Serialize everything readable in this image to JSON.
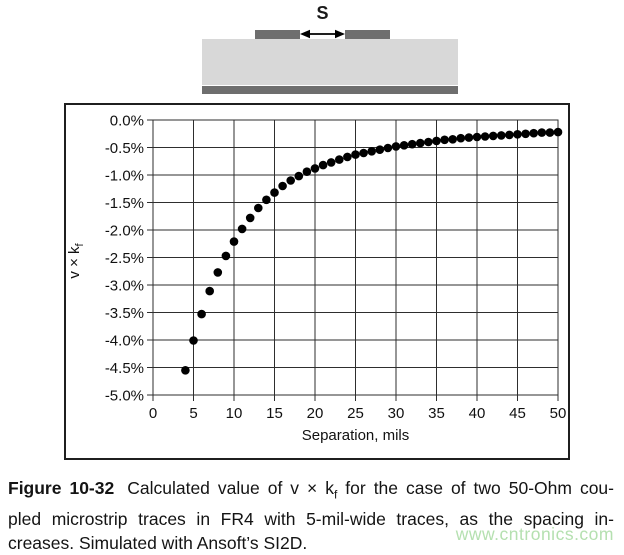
{
  "diagram": {
    "spacing_label": "S"
  },
  "chart_data": {
    "type": "scatter",
    "title": "",
    "xlabel": "Separation, mils",
    "ylabel": "v × k_f",
    "ylabel_main": "v × k",
    "ylabel_sub": "f",
    "xlim": [
      0,
      50
    ],
    "ylim": [
      -5.0,
      0.0
    ],
    "grid": true,
    "legend": "none",
    "x_tick_labels": [
      "0",
      "5",
      "10",
      "15",
      "20",
      "25",
      "30",
      "35",
      "40",
      "45",
      "50"
    ],
    "y_tick_labels": [
      "0.0%",
      "-0.5%",
      "-1.0%",
      "-1.5%",
      "-2.0%",
      "-2.5%",
      "-3.0%",
      "-3.5%",
      "-4.0%",
      "-4.5%",
      "-5.0%"
    ],
    "marker": "filled-circle",
    "marker_color": "#000000",
    "series": [
      {
        "name": "v × k_f",
        "x": [
          4,
          5,
          6,
          7,
          8,
          9,
          10,
          11,
          12,
          13,
          14,
          15,
          16,
          17,
          18,
          19,
          20,
          21,
          22,
          23,
          24,
          25,
          26,
          27,
          28,
          29,
          30,
          31,
          32,
          33,
          34,
          35,
          36,
          37,
          38,
          39,
          40,
          41,
          42,
          43,
          44,
          45,
          46,
          47,
          48,
          49,
          50
        ],
        "y_percent": [
          -4.55,
          -4.01,
          -3.53,
          -3.11,
          -2.77,
          -2.47,
          -2.21,
          -1.98,
          -1.78,
          -1.6,
          -1.45,
          -1.32,
          -1.2,
          -1.1,
          -1.02,
          -0.94,
          -0.88,
          -0.82,
          -0.77,
          -0.72,
          -0.67,
          -0.63,
          -0.6,
          -0.57,
          -0.54,
          -0.51,
          -0.48,
          -0.46,
          -0.44,
          -0.42,
          -0.4,
          -0.38,
          -0.36,
          -0.35,
          -0.33,
          -0.32,
          -0.31,
          -0.3,
          -0.29,
          -0.28,
          -0.27,
          -0.26,
          -0.25,
          -0.24,
          -0.23,
          -0.23,
          -0.22
        ]
      }
    ]
  },
  "caption": {
    "label": "Figure 10-32",
    "line1_pre_sub": "Calculated value of v × k",
    "sub": "f",
    "line1_post_sub": " for the case of two 50-Ohm cou-",
    "line2": "pled microstrip traces in FR4 with 5-mil-wide traces, as the spacing in-",
    "line3": "creases. Simulated with Ansoft’s SI2D.",
    "watermark": "www.cntronics.com"
  },
  "colors": {
    "substrate": "#d8d8d8",
    "conductor": "#6e6e6e",
    "grid": "#2e2e2e",
    "marker": "#000000",
    "watermark": "#b5e0b0"
  }
}
